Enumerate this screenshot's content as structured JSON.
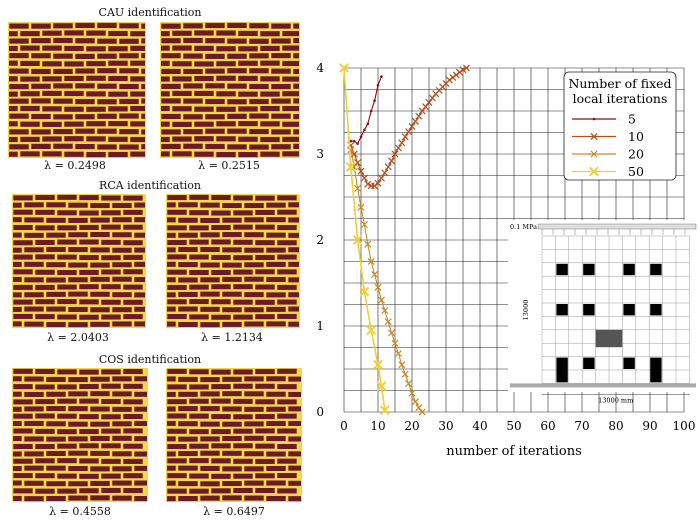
{
  "panels": [
    {
      "title": "CAU identification",
      "lambdas": [
        "λ = 0.2498",
        "λ = 0.2515"
      ]
    },
    {
      "title": "RCA identification",
      "lambdas": [
        "λ = 2.0403",
        "λ = 1.2134"
      ]
    },
    {
      "title": "COS identification",
      "lambdas": [
        "λ = 0.4558",
        "λ = 0.6497"
      ]
    }
  ],
  "colors": {
    "brick": "#6b1a26",
    "mortar": "#f2d64b",
    "c5": "#8b1010",
    "c10": "#b5501c",
    "c20": "#c98a2a",
    "c50": "#f0cf3a"
  },
  "chart_data": {
    "type": "line",
    "xlabel": "number of iterations",
    "ylabel": "",
    "xlim": [
      0,
      100
    ],
    "ylim": [
      0,
      4
    ],
    "xticks": [
      "0",
      "10",
      "20",
      "30",
      "40",
      "50",
      "60",
      "70",
      "80",
      "90",
      "100"
    ],
    "yticks": [
      "0",
      "1",
      "2",
      "3",
      "4"
    ],
    "grid": true,
    "legend": {
      "title": "Number of fixed local iterations",
      "position": "top-right"
    },
    "series": [
      {
        "name": "5",
        "marker": "dot",
        "x": [
          2,
          3,
          4,
          5,
          6,
          7,
          8,
          9,
          10,
          11
        ],
        "y": [
          3.15,
          3.15,
          3.12,
          3.2,
          3.28,
          3.35,
          3.5,
          3.62,
          3.8,
          3.9
        ]
      },
      {
        "name": "10",
        "marker": "x",
        "x": [
          2,
          3,
          4,
          5,
          6,
          7,
          8,
          9,
          10,
          11,
          12,
          13,
          14,
          15,
          16,
          17,
          18,
          19,
          20,
          21,
          22,
          23,
          24,
          25,
          26,
          27,
          28,
          29,
          30,
          31,
          32,
          33,
          34,
          35,
          36
        ],
        "y": [
          3.1,
          3.0,
          2.9,
          2.8,
          2.72,
          2.65,
          2.63,
          2.63,
          2.66,
          2.72,
          2.78,
          2.85,
          2.92,
          3.0,
          3.07,
          3.13,
          3.2,
          3.26,
          3.32,
          3.38,
          3.44,
          3.5,
          3.55,
          3.6,
          3.65,
          3.7,
          3.74,
          3.78,
          3.82,
          3.86,
          3.89,
          3.92,
          3.95,
          3.98,
          4.0
        ]
      },
      {
        "name": "20",
        "marker": "x",
        "x": [
          2,
          3,
          4,
          5,
          6,
          7,
          8,
          9,
          10,
          11,
          12,
          13,
          14,
          15,
          16,
          17,
          18,
          19,
          20,
          21,
          22,
          23
        ],
        "y": [
          3.05,
          2.85,
          2.6,
          2.38,
          2.18,
          1.95,
          1.75,
          1.6,
          1.45,
          1.3,
          1.18,
          1.05,
          0.92,
          0.8,
          0.68,
          0.55,
          0.44,
          0.33,
          0.22,
          0.12,
          0.05,
          0.0
        ]
      },
      {
        "name": "50",
        "marker": "X",
        "x": [
          0,
          2,
          4,
          6,
          8,
          10,
          11,
          12
        ],
        "y": [
          4.0,
          2.85,
          2.0,
          1.4,
          0.95,
          0.55,
          0.3,
          0.02
        ]
      }
    ]
  },
  "inset": {
    "load_label": "0.1 MPa",
    "height_label": "13000",
    "width_label": "13000 mm"
  }
}
